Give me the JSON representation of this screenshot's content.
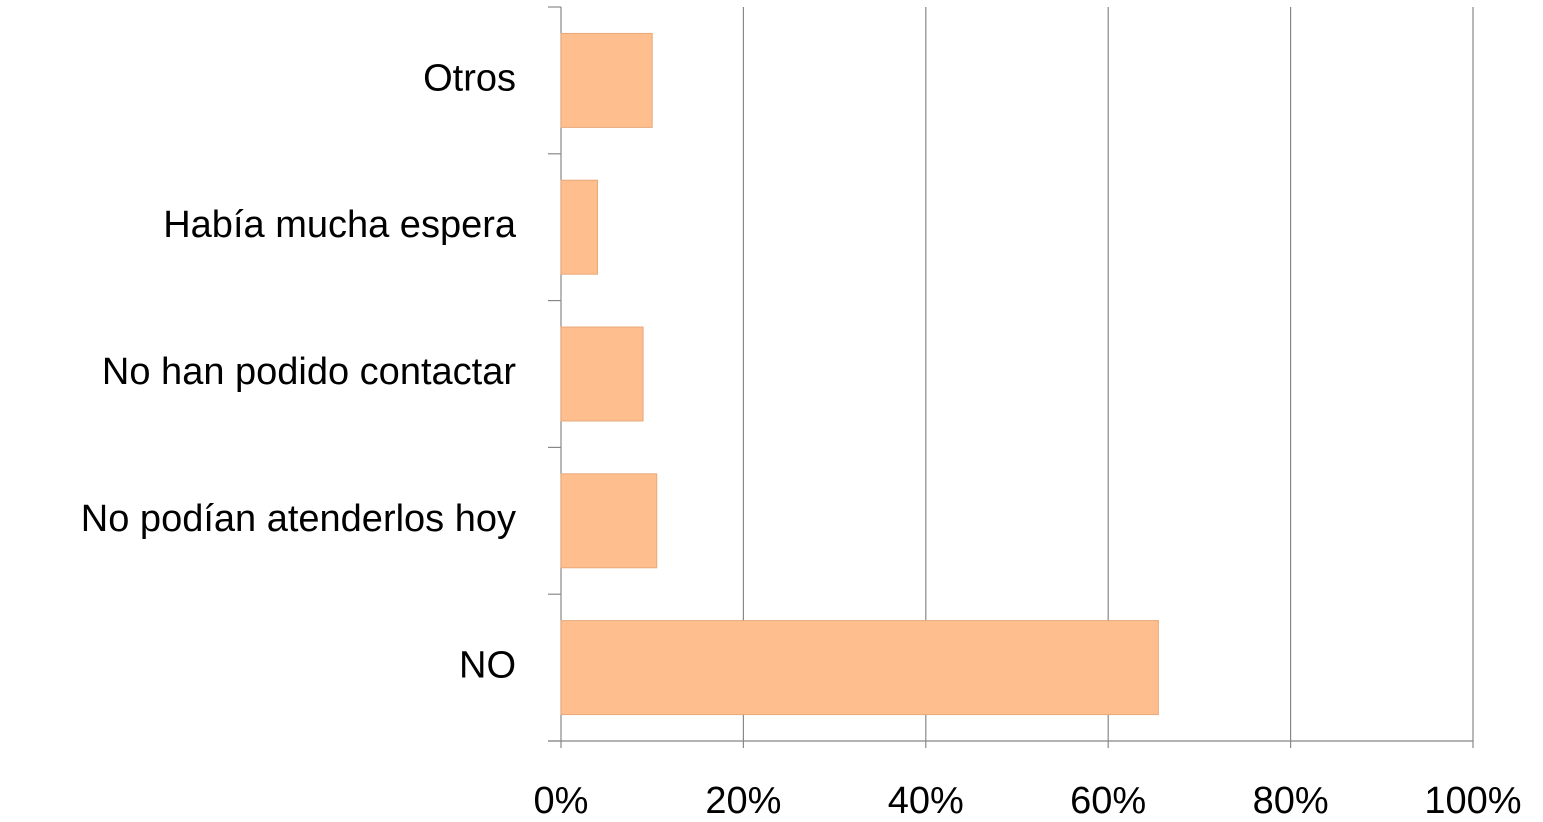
{
  "chart_data": {
    "type": "bar",
    "orientation": "horizontal",
    "categories": [
      "Otros",
      "Había mucha espera",
      "No han podido contactar",
      "No podían atenderlos hoy",
      "NO"
    ],
    "values": [
      10,
      4,
      9,
      10.5,
      65.5
    ],
    "color": "#ffbe8d",
    "xlim": [
      0,
      100
    ],
    "xticks": [
      {
        "value": 0,
        "label": "0%"
      },
      {
        "value": 20,
        "label": "20%"
      },
      {
        "value": 40,
        "label": "40%"
      },
      {
        "value": 60,
        "label": "60%"
      },
      {
        "value": 80,
        "label": "80%"
      },
      {
        "value": 100,
        "label": "100%"
      }
    ],
    "grid": true
  }
}
